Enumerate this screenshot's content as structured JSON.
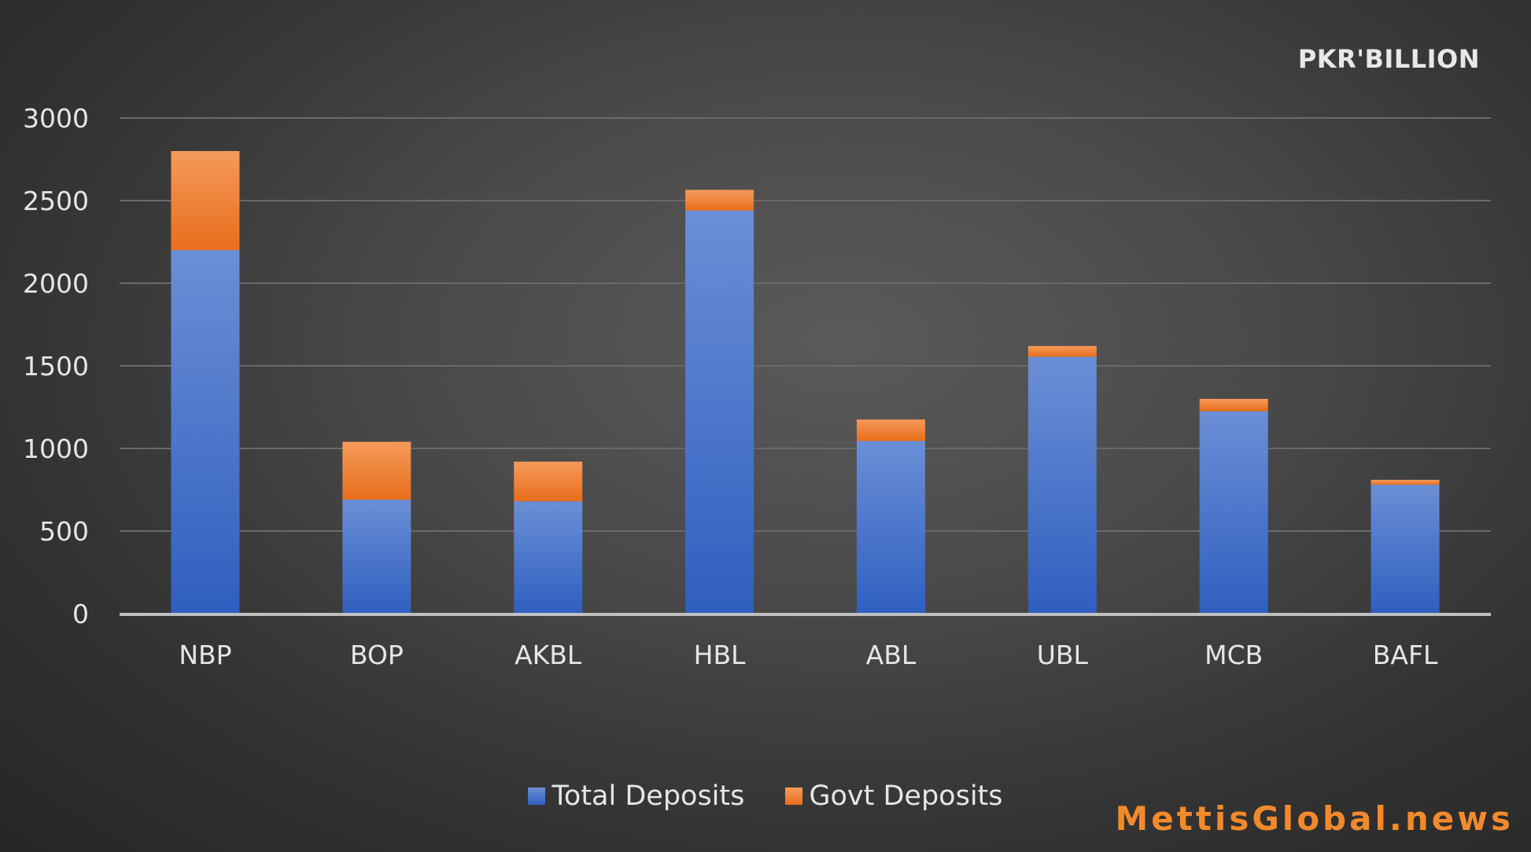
{
  "unit_label": "PKR'BILLION",
  "watermark": "MettisGlobal.news",
  "colors": {
    "total_deposits": "#4472c4",
    "govt_deposits": "#ed7d31",
    "gridline": "#6a6a6a",
    "axis": "#bfbfbf",
    "text": "#e6e6e6"
  },
  "chart_data": {
    "type": "bar",
    "stacked": true,
    "title": "",
    "xlabel": "",
    "ylabel": "",
    "categories": [
      "NBP",
      "BOP",
      "AKBL",
      "HBL",
      "ABL",
      "UBL",
      "MCB",
      "BAFL"
    ],
    "series": [
      {
        "name": "Total Deposits",
        "values": [
          2200,
          690,
          680,
          2440,
          1045,
          1555,
          1225,
          780
        ]
      },
      {
        "name": "Govt Deposits",
        "values": [
          600,
          350,
          240,
          125,
          130,
          65,
          75,
          30
        ]
      }
    ],
    "ylim": [
      0,
      3000
    ],
    "yticks": [
      0,
      500,
      1000,
      1500,
      2000,
      2500,
      3000
    ],
    "grid": true,
    "legend": "bottom"
  }
}
